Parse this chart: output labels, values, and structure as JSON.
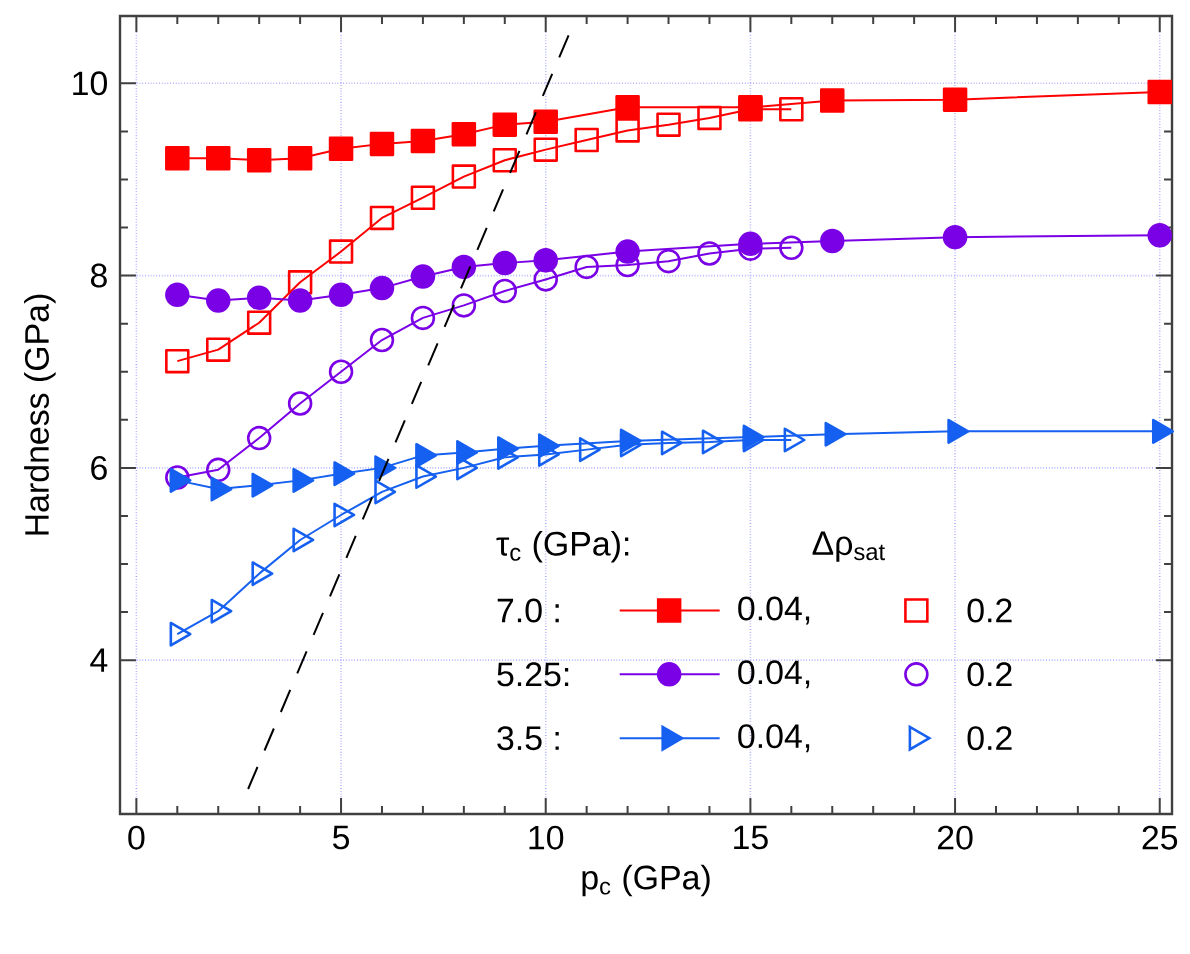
{
  "chart_data": {
    "type": "line",
    "xlabel": "p$_{c}$ (GPa)",
    "ylabel": "Hardness (GPa)",
    "legend_title": "τ$_{c}$ (GPa):",
    "annotations": [
      "Δρ$_{sat}$",
      "7.0 :",
      "5.25:",
      "3.5 :"
    ],
    "xlim": [
      -0.4,
      25.3
    ],
    "ylim": [
      2.4,
      10.7
    ],
    "xticks": [
      0,
      5,
      10,
      15,
      20,
      25
    ],
    "yticks": [
      4,
      6,
      8,
      10
    ],
    "grid": true,
    "legend": "bottom right",
    "series": [
      {
        "name": "0.04,",
        "color": "#ff0000",
        "marker": "square",
        "x": [
          1,
          2,
          3,
          4,
          5,
          6,
          7,
          8,
          9,
          10,
          12,
          15,
          17,
          20,
          25
        ],
        "values": [
          9.22,
          9.22,
          9.2,
          9.22,
          9.32,
          9.37,
          9.4,
          9.47,
          9.57,
          9.6,
          9.75,
          9.75,
          9.82,
          9.83,
          9.91
        ]
      },
      {
        "name": "0.2",
        "color": "#ff0000",
        "marker": "square",
        "x": [
          1,
          2,
          3,
          4,
          5,
          6,
          7,
          8,
          9,
          10,
          11,
          12,
          13,
          14,
          15,
          16
        ],
        "values": [
          7.11,
          7.23,
          7.51,
          7.93,
          8.25,
          8.6,
          8.81,
          9.03,
          9.2,
          9.31,
          9.41,
          9.51,
          9.57,
          9.64,
          9.73,
          9.73
        ]
      },
      {
        "name": "0.04,",
        "color": "#7a00e6",
        "marker": "circle",
        "x": [
          1,
          2,
          3,
          4,
          5,
          6,
          7,
          8,
          9,
          10,
          12,
          15,
          17,
          20,
          25
        ],
        "values": [
          7.8,
          7.74,
          7.77,
          7.74,
          7.8,
          7.87,
          7.99,
          8.09,
          8.13,
          8.16,
          8.25,
          8.33,
          8.36,
          8.4,
          8.42
        ]
      },
      {
        "name": "0.2",
        "color": "#7a00e6",
        "marker": "circle",
        "x": [
          1,
          2,
          3,
          4,
          5,
          6,
          7,
          8,
          9,
          10,
          11,
          12,
          13,
          14,
          15,
          16
        ],
        "values": [
          5.9,
          5.98,
          6.31,
          6.67,
          7.0,
          7.33,
          7.56,
          7.69,
          7.84,
          7.96,
          8.09,
          8.11,
          8.15,
          8.23,
          8.28,
          8.29
        ]
      },
      {
        "name": "0.04,",
        "color": "#1560f0",
        "marker": "triangle",
        "x": [
          1,
          2,
          3,
          4,
          5,
          6,
          7,
          8,
          9,
          10,
          12,
          15,
          17,
          20,
          25
        ],
        "values": [
          5.87,
          5.78,
          5.82,
          5.87,
          5.94,
          6.0,
          6.13,
          6.16,
          6.2,
          6.23,
          6.28,
          6.32,
          6.35,
          6.38,
          6.38
        ]
      },
      {
        "name": "0.2",
        "color": "#1560f0",
        "marker": "triangle",
        "x": [
          1,
          2,
          3,
          4,
          5,
          6,
          7,
          8,
          9,
          10,
          11,
          12,
          13,
          14,
          15,
          16
        ],
        "values": [
          4.27,
          4.51,
          4.9,
          5.25,
          5.51,
          5.75,
          5.91,
          6.0,
          6.11,
          6.14,
          6.19,
          6.24,
          6.26,
          6.27,
          6.29,
          6.29
        ]
      },
      {
        "color": "#000000",
        "marker": "none",
        "line_style": "dashed",
        "x": [
          2.73,
          10.57
        ],
        "values": [
          2.66,
          10.51
        ]
      }
    ]
  }
}
